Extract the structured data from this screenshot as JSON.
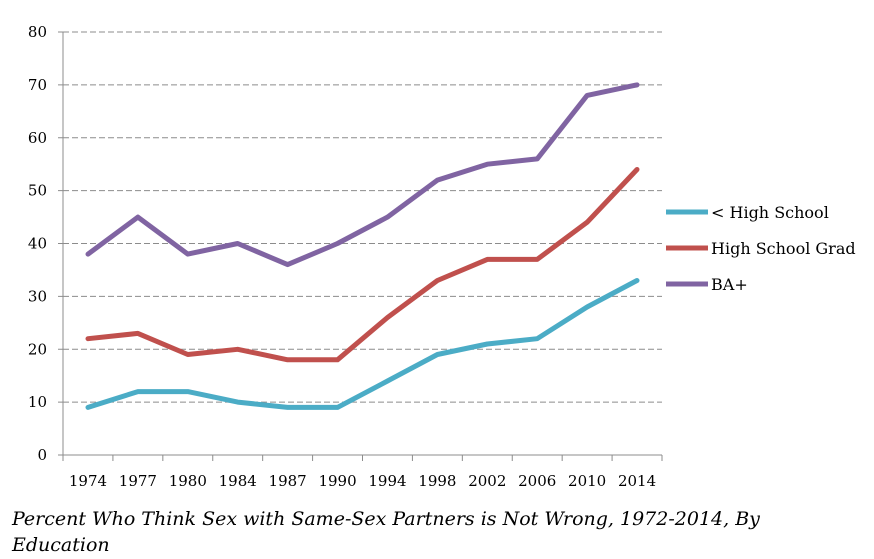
{
  "caption": "Percent Who Think Sex with Same-Sex Partners is Not Wrong, 1972-2014, By Education",
  "chart_data": {
    "type": "line",
    "title": "",
    "xlabel": "",
    "ylabel": "",
    "categories": [
      "1974",
      "1977",
      "1980",
      "1984",
      "1987",
      "1990",
      "1994",
      "1998",
      "2002",
      "2006",
      "2010",
      "2014"
    ],
    "ylim": [
      0,
      80
    ],
    "yticks": [
      0,
      10,
      20,
      30,
      40,
      50,
      60,
      70,
      80
    ],
    "grid": "horizontal dashed",
    "legend_position": "right",
    "series": [
      {
        "name": "< High School",
        "color": "#4bacc6",
        "values": [
          9,
          12,
          12,
          10,
          9,
          9,
          14,
          19,
          21,
          22,
          28,
          33
        ]
      },
      {
        "name": "High School Grad",
        "color": "#c0504d",
        "values": [
          22,
          23,
          19,
          20,
          18,
          18,
          26,
          33,
          37,
          37,
          44,
          54
        ]
      },
      {
        "name": "BA+",
        "color": "#8064a2",
        "values": [
          38,
          45,
          38,
          40,
          36,
          40,
          45,
          52,
          55,
          56,
          68,
          70
        ]
      }
    ]
  }
}
